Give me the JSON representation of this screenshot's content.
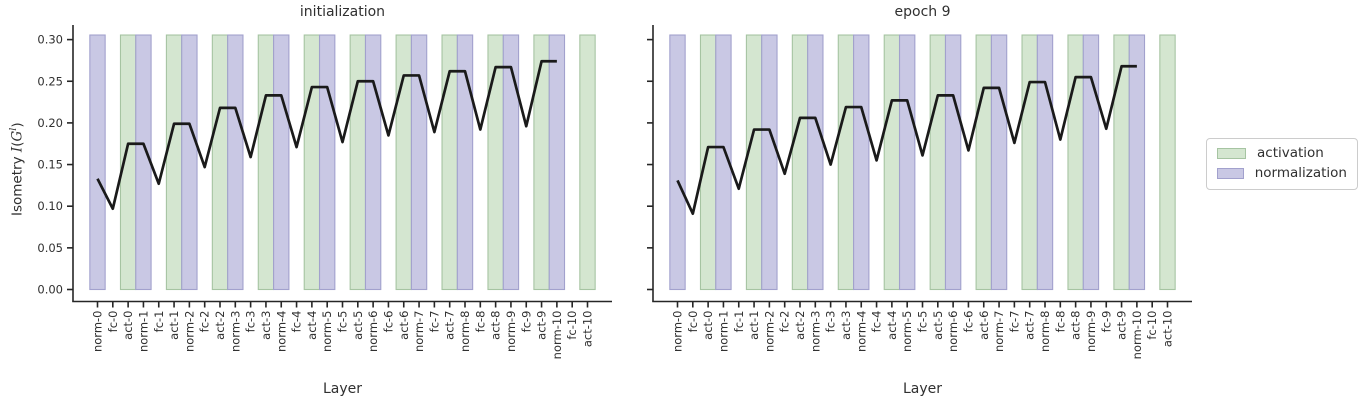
{
  "page": {
    "background": "#ffffff"
  },
  "ylabel": {
    "prefix": "Isometry ",
    "symbol_func": "I",
    "paren_open": "(",
    "symbol_var": "G",
    "superscript": "l",
    "paren_close": ")"
  },
  "axis": {
    "yticks": [
      0.0,
      0.05,
      0.1,
      0.15,
      0.2,
      0.25,
      0.3
    ],
    "ytick_labels": [
      "0.00",
      "0.05",
      "0.10",
      "0.15",
      "0.20",
      "0.25",
      "0.30"
    ],
    "xlabel": "Layer"
  },
  "legend": {
    "items": [
      {
        "label": "activation",
        "type_prefix": "act",
        "fill": "#d4e6d0",
        "edge": "#a6c4a2"
      },
      {
        "label": "normalization",
        "type_prefix": "norm",
        "fill": "#c9c8e4",
        "edge": "#a2a1cd"
      }
    ]
  },
  "colors": {
    "line": "#1a1a1a",
    "spine": "#262626",
    "text": "#303030"
  },
  "chart_data": [
    {
      "type": "line",
      "title": "initialization",
      "xlabel": "Layer",
      "ylabel": "Isometry I(G^l)",
      "legend_position": "outside-right",
      "grid": false,
      "show_ytick_labels": true,
      "ylim": [
        -0.0145,
        0.3175
      ],
      "band_height": 0.3055,
      "categories": [
        "norm-0",
        "fc-0",
        "act-0",
        "norm-1",
        "fc-1",
        "act-1",
        "norm-2",
        "fc-2",
        "act-2",
        "norm-3",
        "fc-3",
        "act-3",
        "norm-4",
        "fc-4",
        "act-4",
        "norm-5",
        "fc-5",
        "act-5",
        "norm-6",
        "fc-6",
        "act-6",
        "norm-7",
        "fc-7",
        "act-7",
        "norm-8",
        "fc-8",
        "act-8",
        "norm-9",
        "fc-9",
        "act-9",
        "norm-10",
        "fc-10",
        "act-10"
      ],
      "values": [
        0.133,
        0.097,
        0.175,
        0.175,
        0.127,
        0.199,
        0.199,
        0.147,
        0.218,
        0.218,
        0.159,
        0.233,
        0.233,
        0.171,
        0.243,
        0.243,
        0.177,
        0.25,
        0.25,
        0.185,
        0.257,
        0.257,
        0.189,
        0.262,
        0.262,
        0.192,
        0.267,
        0.267,
        0.196,
        0.274,
        0.274,
        null,
        null
      ]
    },
    {
      "type": "line",
      "title": "epoch 9",
      "xlabel": "Layer",
      "ylabel": "Isometry I(G^l)",
      "legend_position": "outside-right",
      "grid": false,
      "show_ytick_labels": false,
      "ylim": [
        -0.0145,
        0.3175
      ],
      "band_height": 0.3055,
      "categories": [
        "norm-0",
        "fc-0",
        "act-0",
        "norm-1",
        "fc-1",
        "act-1",
        "norm-2",
        "fc-2",
        "act-2",
        "norm-3",
        "fc-3",
        "act-3",
        "norm-4",
        "fc-4",
        "act-4",
        "norm-5",
        "fc-5",
        "act-5",
        "norm-6",
        "fc-6",
        "act-6",
        "norm-7",
        "fc-7",
        "act-7",
        "norm-8",
        "fc-8",
        "act-8",
        "norm-9",
        "fc-9",
        "act-9",
        "norm-10",
        "fc-10",
        "act-10"
      ],
      "values": [
        0.131,
        0.091,
        0.171,
        0.171,
        0.121,
        0.192,
        0.192,
        0.139,
        0.206,
        0.206,
        0.15,
        0.219,
        0.219,
        0.155,
        0.227,
        0.227,
        0.161,
        0.233,
        0.233,
        0.167,
        0.242,
        0.242,
        0.176,
        0.249,
        0.249,
        0.18,
        0.255,
        0.255,
        0.193,
        0.268,
        0.268,
        null,
        null
      ]
    }
  ]
}
